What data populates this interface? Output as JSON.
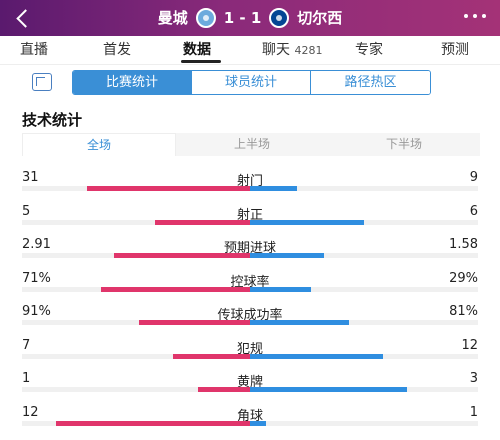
{
  "header": {
    "home_team": "曼城",
    "score": "1 - 1",
    "away_team": "切尔西"
  },
  "nav": {
    "tabs": [
      {
        "label": "直播"
      },
      {
        "label": "首发"
      },
      {
        "label": "数据"
      },
      {
        "label": "聊天",
        "count": "4281"
      },
      {
        "label": "专家"
      },
      {
        "label": "预测"
      }
    ],
    "active": "数据"
  },
  "segments": [
    "比赛统计",
    "球员统计",
    "路径热区"
  ],
  "section_title": "技术统计",
  "periods": [
    "全场",
    "上半场",
    "下半场"
  ],
  "colors": {
    "home": "#e0356b",
    "away": "#2f8ee0",
    "accent": "#3a8fd6"
  },
  "stats": [
    {
      "name": "射门",
      "home": "31",
      "away": "9",
      "home_frac": 0.775,
      "away_frac": 0.225
    },
    {
      "name": "射正",
      "home": "5",
      "away": "6",
      "home_frac": 0.455,
      "away_frac": 0.545
    },
    {
      "name": "预期进球",
      "home": "2.91",
      "away": "1.58",
      "home_frac": 0.648,
      "away_frac": 0.352
    },
    {
      "name": "控球率",
      "home": "71%",
      "away": "29%",
      "home_frac": 0.71,
      "away_frac": 0.29
    },
    {
      "name": "传球成功率",
      "home": "91%",
      "away": "81%",
      "home_frac": 0.529,
      "away_frac": 0.471
    },
    {
      "name": "犯规",
      "home": "7",
      "away": "12",
      "home_frac": 0.368,
      "away_frac": 0.632
    },
    {
      "name": "黄牌",
      "home": "1",
      "away": "3",
      "home_frac": 0.25,
      "away_frac": 0.75
    },
    {
      "name": "角球",
      "home": "12",
      "away": "1",
      "home_frac": 0.923,
      "away_frac": 0.077
    }
  ]
}
